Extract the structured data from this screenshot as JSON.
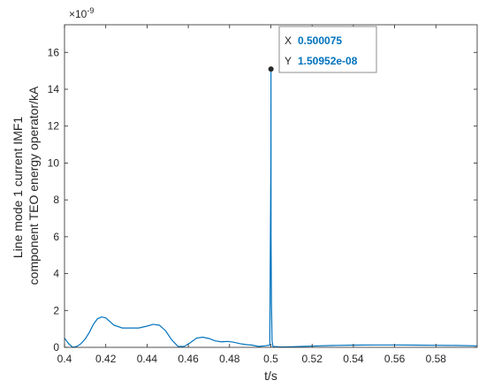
{
  "chart_data": {
    "type": "line",
    "xlabel": "t/s",
    "ylabel_lines": [
      "Line mode 1 current IMF1",
      "component TEO energy operator/kA"
    ],
    "exponent_label": "×10",
    "exponent_power": "-9",
    "xlim": [
      0.4,
      0.6
    ],
    "ylim": [
      0,
      17.5
    ],
    "xticks": [
      "0.4",
      "0.42",
      "0.44",
      "0.46",
      "0.48",
      "0.5",
      "0.52",
      "0.54",
      "0.56",
      "0.58"
    ],
    "yticks": [
      "0",
      "2",
      "4",
      "6",
      "8",
      "10",
      "12",
      "14",
      "16"
    ],
    "line_color": "#0072BD",
    "series": [
      {
        "x": [
          0.4,
          0.402,
          0.404,
          0.406,
          0.408,
          0.41,
          0.412,
          0.414,
          0.416,
          0.418,
          0.42,
          0.422,
          0.424,
          0.428,
          0.432,
          0.436,
          0.44,
          0.443,
          0.446,
          0.449,
          0.452,
          0.455,
          0.458,
          0.461,
          0.464,
          0.467,
          0.47,
          0.473,
          0.476,
          0.479,
          0.482,
          0.485,
          0.488,
          0.491,
          0.494,
          0.497,
          0.4995,
          0.50005,
          0.500075,
          0.5001,
          0.5003,
          0.5006,
          0.501,
          0.505,
          0.51,
          0.52,
          0.53,
          0.54,
          0.55,
          0.56,
          0.57,
          0.58,
          0.59,
          0.6
        ],
        "y": [
          0.5,
          0.2,
          0.0,
          0.05,
          0.2,
          0.45,
          0.8,
          1.25,
          1.55,
          1.65,
          1.6,
          1.4,
          1.2,
          1.05,
          1.05,
          1.05,
          1.15,
          1.25,
          1.2,
          0.9,
          0.4,
          0.05,
          0.05,
          0.25,
          0.5,
          0.55,
          0.48,
          0.35,
          0.3,
          0.32,
          0.28,
          0.2,
          0.15,
          0.12,
          0.05,
          0.08,
          0.12,
          11.0,
          15.0952,
          6.0,
          2.4,
          0.35,
          0.05,
          0.02,
          0.03,
          0.07,
          0.1,
          0.12,
          0.13,
          0.13,
          0.12,
          0.11,
          0.1,
          0.08
        ]
      }
    ],
    "datatip": {
      "x_key": "X",
      "x_value": "0.500075",
      "y_key": "Y",
      "y_value": "1.50952e-08",
      "point_x": 0.500075,
      "point_y": 15.0952
    }
  }
}
